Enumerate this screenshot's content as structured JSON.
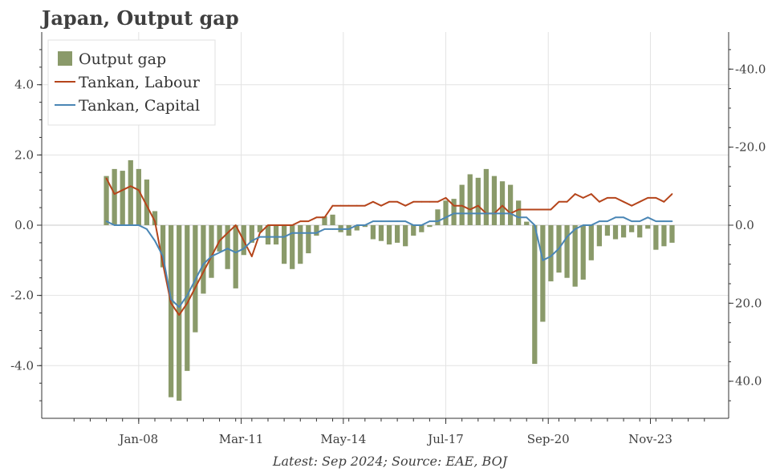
{
  "title": "Japan, Output gap",
  "source": "Latest: Sep 2024; Source: EAE, BOJ",
  "colors": {
    "bars": "#8a9a6a",
    "labour": "#b5451b",
    "capital": "#4a86b5",
    "grid": "#e3e3e3",
    "axis": "#333333"
  },
  "chart_data": {
    "type": "bar",
    "x_ticks": [
      "Jan-08",
      "Mar-11",
      "May-14",
      "Jul-17",
      "Sep-20",
      "Nov-23"
    ],
    "y_left_ticks": [
      "4.0",
      "2.0",
      "0.0",
      "-2.0",
      "-4.0"
    ],
    "y_right_ticks": [
      "-40.0",
      "-20.0",
      "0.0",
      "20.0",
      "40.0"
    ],
    "y_left_range": [
      -5.5,
      5.5
    ],
    "y_right_range": [
      49.5,
      -49.5
    ],
    "y_right_inverted": true,
    "grid": true,
    "legend_position": "top-left",
    "series": [
      {
        "name": "Output gap",
        "kind": "bar",
        "axis": "left",
        "x": [
          2007.0,
          2007.25,
          2007.5,
          2007.75,
          2008.0,
          2008.25,
          2008.5,
          2008.75,
          2009.0,
          2009.25,
          2009.5,
          2009.75,
          2010.0,
          2010.25,
          2010.5,
          2010.75,
          2011.0,
          2011.25,
          2011.5,
          2011.75,
          2012.0,
          2012.25,
          2012.5,
          2012.75,
          2013.0,
          2013.25,
          2013.5,
          2013.75,
          2014.0,
          2014.25,
          2014.5,
          2014.75,
          2015.0,
          2015.25,
          2015.5,
          2015.75,
          2016.0,
          2016.25,
          2016.5,
          2016.75,
          2017.0,
          2017.25,
          2017.5,
          2017.75,
          2018.0,
          2018.25,
          2018.5,
          2018.75,
          2019.0,
          2019.25,
          2019.5,
          2019.75,
          2020.0,
          2020.25,
          2020.5,
          2020.75,
          2021.0,
          2021.25,
          2021.5,
          2021.75,
          2022.0,
          2022.25,
          2022.5,
          2022.75,
          2023.0,
          2023.25,
          2023.5,
          2023.75,
          2024.0,
          2024.25,
          2024.5
        ],
        "values": [
          1.4,
          1.6,
          1.55,
          1.85,
          1.6,
          1.3,
          0.4,
          -1.2,
          -4.9,
          -5.0,
          -4.15,
          -3.05,
          -1.95,
          -1.5,
          -0.75,
          -1.25,
          -1.8,
          -0.85,
          -0.5,
          -0.2,
          -0.55,
          -0.55,
          -1.1,
          -1.25,
          -1.1,
          -0.8,
          -0.3,
          0.25,
          0.3,
          -0.2,
          -0.3,
          -0.15,
          -0.05,
          -0.4,
          -0.45,
          -0.55,
          -0.5,
          -0.6,
          -0.3,
          -0.2,
          -0.05,
          0.45,
          0.7,
          0.75,
          1.15,
          1.45,
          1.35,
          1.6,
          1.4,
          1.25,
          1.15,
          0.7,
          0.1,
          -3.95,
          -2.75,
          -1.6,
          -1.35,
          -1.5,
          -1.75,
          -1.55,
          -1.0,
          -0.6,
          -0.3,
          -0.4,
          -0.35,
          -0.2,
          -0.35,
          -0.1,
          -0.7,
          -0.6,
          -0.5
        ]
      },
      {
        "name": "Tankan, Labour",
        "kind": "line",
        "axis": "right",
        "x": [
          2007.0,
          2007.25,
          2007.5,
          2007.75,
          2008.0,
          2008.25,
          2008.5,
          2008.75,
          2009.0,
          2009.25,
          2009.5,
          2009.75,
          2010.0,
          2010.25,
          2010.5,
          2010.75,
          2011.0,
          2011.25,
          2011.5,
          2011.75,
          2012.0,
          2012.25,
          2012.5,
          2012.75,
          2013.0,
          2013.25,
          2013.5,
          2013.75,
          2014.0,
          2014.25,
          2014.5,
          2014.75,
          2015.0,
          2015.25,
          2015.5,
          2015.75,
          2016.0,
          2016.25,
          2016.5,
          2016.75,
          2017.0,
          2017.25,
          2017.5,
          2017.75,
          2018.0,
          2018.25,
          2018.5,
          2018.75,
          2019.0,
          2019.25,
          2019.5,
          2019.75,
          2020.0,
          2020.25,
          2020.5,
          2020.75,
          2021.0,
          2021.25,
          2021.5,
          2021.75,
          2022.0,
          2022.25,
          2022.5,
          2022.75,
          2023.0,
          2023.25,
          2023.5,
          2023.75,
          2024.0,
          2024.25,
          2024.5
        ],
        "values": [
          -12,
          -8,
          -9,
          -10,
          -9,
          -5,
          -1,
          10,
          20,
          23,
          20,
          16,
          12,
          8,
          4,
          2,
          0,
          4,
          8,
          2,
          0,
          0,
          0,
          0,
          -1,
          -1,
          -2,
          -2,
          -5,
          -5,
          -5,
          -5,
          -5,
          -6,
          -5,
          -6,
          -6,
          -5,
          -6,
          -6,
          -6,
          -6,
          -7,
          -5,
          -5,
          -4,
          -5,
          -3,
          -3,
          -5,
          -3,
          -4,
          -4,
          -4,
          -4,
          -4,
          -6,
          -6,
          -8,
          -7,
          -8,
          -6,
          -7,
          -7,
          -6,
          -5,
          -6,
          -7,
          -7,
          -6,
          -8
        ]
      },
      {
        "name": "Tankan, Capital",
        "kind": "line",
        "axis": "right",
        "x": [
          2007.0,
          2007.25,
          2007.5,
          2007.75,
          2008.0,
          2008.25,
          2008.5,
          2008.75,
          2009.0,
          2009.25,
          2009.5,
          2009.75,
          2010.0,
          2010.25,
          2010.5,
          2010.75,
          2011.0,
          2011.25,
          2011.5,
          2011.75,
          2012.0,
          2012.25,
          2012.5,
          2012.75,
          2013.0,
          2013.25,
          2013.5,
          2013.75,
          2014.0,
          2014.25,
          2014.5,
          2014.75,
          2015.0,
          2015.25,
          2015.5,
          2015.75,
          2016.0,
          2016.25,
          2016.5,
          2016.75,
          2017.0,
          2017.25,
          2017.5,
          2017.75,
          2018.0,
          2018.25,
          2018.5,
          2018.75,
          2019.0,
          2019.25,
          2019.5,
          2019.75,
          2020.0,
          2020.25,
          2020.5,
          2020.75,
          2021.0,
          2021.25,
          2021.5,
          2021.75,
          2022.0,
          2022.25,
          2022.5,
          2022.75,
          2023.0,
          2023.25,
          2023.5,
          2023.75,
          2024.0,
          2024.25,
          2024.5
        ],
        "values": [
          -1,
          0,
          0,
          0,
          0,
          1,
          4,
          8,
          19,
          21,
          18,
          14,
          10,
          8,
          7,
          6,
          7,
          6,
          4,
          3,
          3,
          3,
          3,
          2,
          2,
          2,
          2,
          1,
          1,
          1,
          1,
          0,
          0,
          -1,
          -1,
          -1,
          -1,
          -1,
          0,
          0,
          -1,
          -1,
          -2,
          -3,
          -3,
          -3,
          -3,
          -3,
          -3,
          -3,
          -3,
          -2,
          -2,
          0,
          9,
          8,
          6,
          3,
          1,
          0,
          0,
          -1,
          -1,
          -2,
          -2,
          -1,
          -1,
          -2,
          -1,
          -1,
          -1
        ]
      }
    ]
  }
}
